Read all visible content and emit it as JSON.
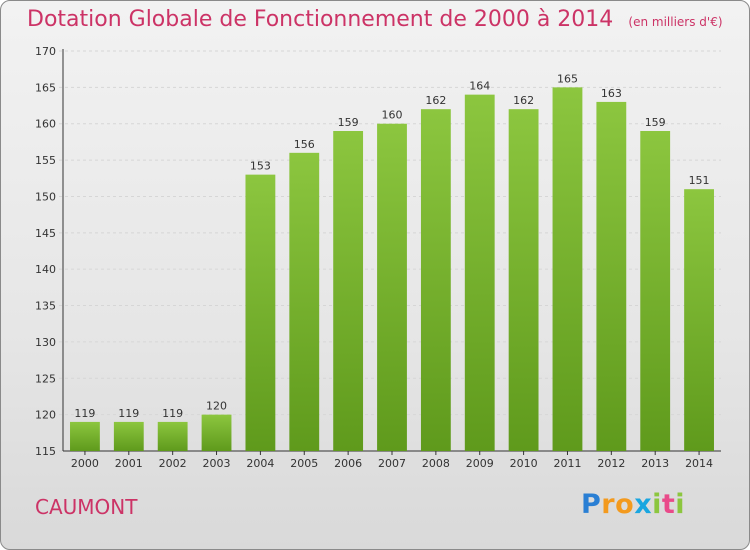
{
  "chart_data": {
    "type": "bar",
    "title": "Dotation Globale de Fonctionnement de 2000 à 2014",
    "unit_label": "(en milliers d'€)",
    "categories": [
      "2000",
      "2001",
      "2002",
      "2003",
      "2004",
      "2005",
      "2006",
      "2007",
      "2008",
      "2009",
      "2010",
      "2011",
      "2012",
      "2013",
      "2014"
    ],
    "values": [
      119,
      119,
      119,
      120,
      153,
      156,
      159,
      160,
      162,
      164,
      162,
      165,
      163,
      159,
      151
    ],
    "ylim": [
      115,
      170
    ],
    "yticks": [
      115,
      120,
      125,
      130,
      135,
      140,
      145,
      150,
      155,
      160,
      165,
      170
    ],
    "grid": true,
    "bar_color": "#8cc63f",
    "bar_color_dark": "#5f9a1c"
  },
  "footer": {
    "commune": "CAUMONT",
    "logo_text": "Proxiti"
  }
}
